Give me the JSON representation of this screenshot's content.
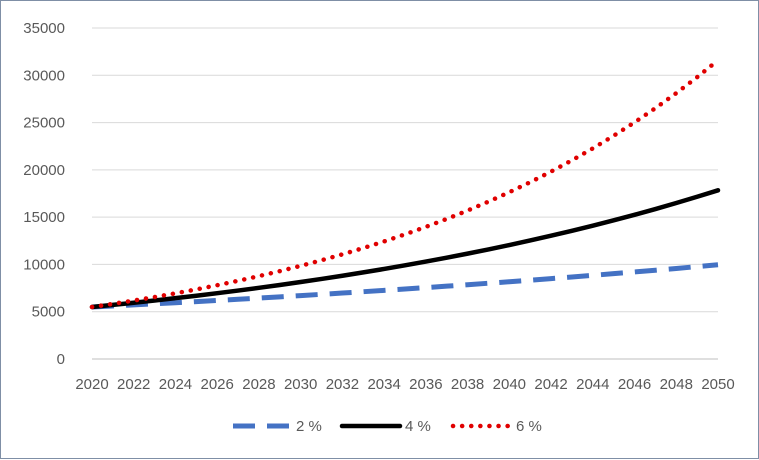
{
  "chart_data": {
    "type": "line",
    "title": "",
    "xlabel": "",
    "ylabel": "",
    "x": [
      2020,
      2021,
      2022,
      2023,
      2024,
      2025,
      2026,
      2027,
      2028,
      2029,
      2030,
      2031,
      2032,
      2033,
      2034,
      2035,
      2036,
      2037,
      2038,
      2039,
      2040,
      2041,
      2042,
      2043,
      2044,
      2045,
      2046,
      2047,
      2048,
      2049,
      2050
    ],
    "x_tick_labels": [
      "2020",
      "2022",
      "2024",
      "2026",
      "2028",
      "2030",
      "2032",
      "2034",
      "2036",
      "2038",
      "2040",
      "2042",
      "2044",
      "2046",
      "2048",
      "2050"
    ],
    "y_tick_labels": [
      "0",
      "5000",
      "10000",
      "15000",
      "20000",
      "25000",
      "30000",
      "35000"
    ],
    "ylim": [
      0,
      35000
    ],
    "grid": "horizontal",
    "legend_position": "bottom",
    "series": [
      {
        "name": "2 %",
        "color": "#4472c4",
        "style": "dashed",
        "values": [
          5500,
          5610,
          5722,
          5837,
          5953,
          6072,
          6194,
          6318,
          6444,
          6573,
          6704,
          6838,
          6975,
          7115,
          7257,
          7402,
          7550,
          7701,
          7855,
          8012,
          8172,
          8336,
          8502,
          8672,
          8846,
          9023,
          9203,
          9387,
          9575,
          9767,
          9962
        ]
      },
      {
        "name": "4 %",
        "color": "#000000",
        "style": "solid",
        "values": [
          5500,
          5720,
          5949,
          6187,
          6434,
          6692,
          6959,
          7238,
          7527,
          7828,
          8141,
          8467,
          8806,
          9158,
          9524,
          9905,
          10302,
          10714,
          11142,
          11588,
          12051,
          12534,
          13035,
          13556,
          14098,
          14662,
          15249,
          15859,
          16493,
          17153,
          17839
        ]
      },
      {
        "name": "6 %",
        "color": "#e00000",
        "style": "dotted",
        "values": [
          5500,
          5830,
          6180,
          6551,
          6944,
          7360,
          7802,
          8270,
          8766,
          9292,
          9850,
          10441,
          11067,
          11731,
          12435,
          13181,
          13972,
          14810,
          15699,
          16641,
          17639,
          18698,
          19819,
          21009,
          22269,
          23605,
          25022,
          26523,
          28114,
          29801,
          31589
        ]
      }
    ]
  }
}
